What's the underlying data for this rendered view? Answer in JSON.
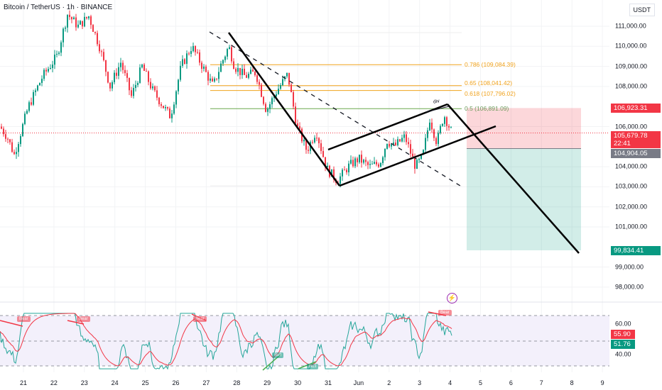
{
  "header": {
    "title": "Bitcoin / TetherUS · 1h · BINANCE",
    "currency": "USDT"
  },
  "price_axis": {
    "ticks": [
      {
        "v": 111000,
        "label": "111,000.00"
      },
      {
        "v": 110000,
        "label": "110,000.00"
      },
      {
        "v": 109000,
        "label": "109,000.00"
      },
      {
        "v": 108000,
        "label": "108,000.00"
      },
      {
        "v": 106000,
        "label": "106,000.00"
      },
      {
        "v": 104000,
        "label": "104,000.00"
      },
      {
        "v": 103000,
        "label": "103,000.00"
      },
      {
        "v": 102000,
        "label": "102,000.00"
      },
      {
        "v": 101000,
        "label": "101,000.00"
      },
      {
        "v": 99000,
        "label": "99,000.00"
      },
      {
        "v": 98000,
        "label": "98,000.00"
      }
    ]
  },
  "tags": {
    "stop": {
      "label": "106,923.31",
      "v": 106923.31,
      "color": "#f23645"
    },
    "last": {
      "label": "105,679.78",
      "countdown": "22:41",
      "v": 105679.78,
      "color": "#f23645"
    },
    "entry": {
      "label": "104,904.05",
      "v": 104904.05,
      "color": "#787b86"
    },
    "target": {
      "label": "99,834.41",
      "v": 99834.41,
      "color": "#089981"
    }
  },
  "fib": [
    {
      "label": "0.786 (109,084.39)",
      "v": 109084.39
    },
    {
      "label": "0.65 (108,041.42)",
      "v": 108041.42
    },
    {
      "label": "0.618 (107,796.02)",
      "v": 107796.02
    },
    {
      "label": "0.5 (106,891.09)",
      "v": 106891.09
    }
  ],
  "annotation": "div",
  "dates": [
    "21",
    "22",
    "23",
    "24",
    "25",
    "26",
    "27",
    "28",
    "29",
    "30",
    "31",
    "Jun",
    "2",
    "3",
    "4",
    "5",
    "6",
    "7",
    "8",
    "9"
  ],
  "rsi": {
    "ticks": [
      {
        "v": 60,
        "label": "60.00"
      },
      {
        "v": 40,
        "label": "40.00"
      }
    ],
    "rsi_value": "55.90",
    "ma_value": "51.76",
    "bear": "Bear",
    "bull": "Bull"
  },
  "colors": {
    "up": "#089981",
    "down": "#f23645",
    "rsi": "#26a69a",
    "rsi_ma": "#f23645",
    "fib": "#f0a21c"
  }
}
